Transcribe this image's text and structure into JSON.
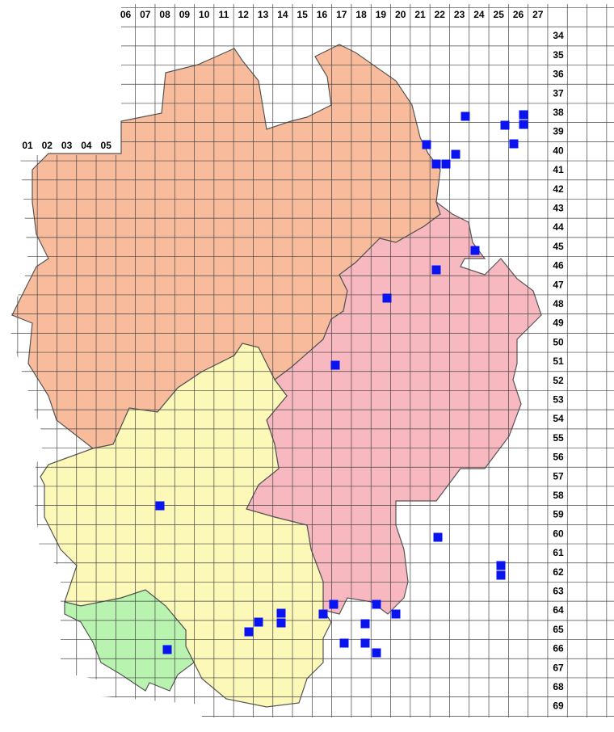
{
  "map": {
    "column_labels": [
      "01",
      "02",
      "03",
      "04",
      "05",
      "06",
      "07",
      "08",
      "09",
      "10",
      "11",
      "12",
      "13",
      "14",
      "15",
      "16",
      "17",
      "18",
      "19",
      "20",
      "21",
      "22",
      "23",
      "24",
      "25",
      "26",
      "27"
    ],
    "row_labels": [
      "34",
      "35",
      "36",
      "37",
      "38",
      "39",
      "40",
      "41",
      "42",
      "43",
      "44",
      "45",
      "46",
      "47",
      "48",
      "49",
      "50",
      "51",
      "52",
      "53",
      "54",
      "55",
      "56",
      "57",
      "58",
      "59",
      "60",
      "61",
      "62",
      "63",
      "64",
      "65",
      "66",
      "67",
      "68",
      "69"
    ]
  }
}
